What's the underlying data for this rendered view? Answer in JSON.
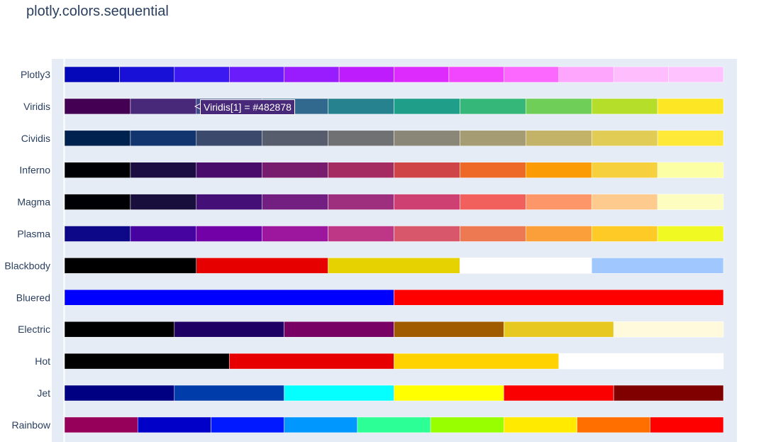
{
  "title": "plotly.colors.sequential",
  "colors": {
    "plot_background": "#e5ecf6",
    "label_text": "#2a3f5f",
    "segment_separator": "#ffffff"
  },
  "tooltip": {
    "text": "Viridis[1] = #482878",
    "background": "#482878",
    "scale": "Viridis",
    "index": 1
  },
  "chart_data": {
    "type": "bar",
    "orientation": "horizontal",
    "title": "plotly.colors.sequential",
    "xlabel": "",
    "ylabel": "",
    "grid": true,
    "categories": [
      "Plotly3",
      "Viridis",
      "Cividis",
      "Inferno",
      "Magma",
      "Plasma",
      "Blackbody",
      "Bluered",
      "Electric",
      "Hot",
      "Jet",
      "Rainbow"
    ],
    "series": [
      {
        "name": "Plotly3",
        "colors": [
          "#0508b8",
          "#1910d8",
          "#3c19f0",
          "#6b1cfb",
          "#981cfd",
          "#bf1cfd",
          "#dd2bfd",
          "#f246fe",
          "#fc67fd",
          "#fea5fd",
          "#febefe",
          "#fec3fe"
        ]
      },
      {
        "name": "Viridis",
        "colors": [
          "#440154",
          "#482878",
          "#3e4989",
          "#31688e",
          "#26828e",
          "#1f9e89",
          "#35b779",
          "#6ece58",
          "#b5de2b",
          "#fde725"
        ]
      },
      {
        "name": "Cividis",
        "colors": [
          "#00224e",
          "#123570",
          "#3b496c",
          "#575d6d",
          "#707173",
          "#8a8678",
          "#a59c74",
          "#c3b369",
          "#e1cc55",
          "#fee838"
        ]
      },
      {
        "name": "Inferno",
        "colors": [
          "#000004",
          "#1b0c41",
          "#4a0c6b",
          "#781c6d",
          "#a52c60",
          "#cf4446",
          "#ed6925",
          "#fb9b06",
          "#f7d13d",
          "#fcffa4"
        ]
      },
      {
        "name": "Magma",
        "colors": [
          "#000004",
          "#180f3d",
          "#440f76",
          "#721f81",
          "#9e2f7f",
          "#cd4071",
          "#f1605d",
          "#fd9668",
          "#feca8d",
          "#fcfdbf"
        ]
      },
      {
        "name": "Plasma",
        "colors": [
          "#0d0887",
          "#46039f",
          "#7201a8",
          "#9c179e",
          "#bd3786",
          "#d8576b",
          "#ed7953",
          "#fb9f3a",
          "#fdca26",
          "#f0f921"
        ]
      },
      {
        "name": "Blackbody",
        "colors": [
          "#000000",
          "#e60000",
          "#e6d200",
          "#ffffff",
          "#a0c8ff"
        ]
      },
      {
        "name": "Bluered",
        "colors": [
          "#0000ff",
          "#ff0000"
        ]
      },
      {
        "name": "Electric",
        "colors": [
          "#000000",
          "#1e0064",
          "#780064",
          "#a05a00",
          "#e6c81e",
          "#fffadc"
        ]
      },
      {
        "name": "Hot",
        "colors": [
          "#000000",
          "#e60000",
          "#ffd200",
          "#ffffff"
        ]
      },
      {
        "name": "Jet",
        "colors": [
          "#000083",
          "#003caa",
          "#05ffff",
          "#ffff00",
          "#fa0000",
          "#800000"
        ]
      },
      {
        "name": "Rainbow",
        "colors": [
          "#96005a",
          "#0000c8",
          "#0019ff",
          "#0098ff",
          "#2cff96",
          "#97ff00",
          "#ffea00",
          "#ff6f00",
          "#ff0000"
        ]
      }
    ]
  }
}
